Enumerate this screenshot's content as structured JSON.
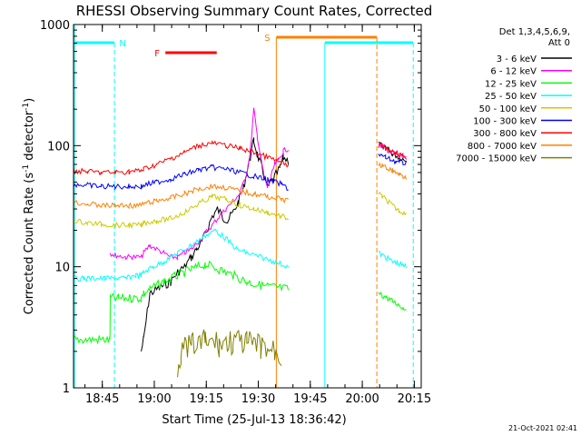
{
  "chart_data": {
    "type": "line",
    "title": "RHESSI Observing Summary Count Rates, Corrected",
    "xlabel": "Start Time (25-Jul-13 18:36:42)",
    "ylabel": "Corrected Count Rate (s⁻¹ detector⁻¹)",
    "ylabel_main": "Corrected Count Rate (s",
    "ylabel_exp1": "-1",
    "ylabel_mid": " detector",
    "ylabel_exp2": "-1",
    "ylabel_end": ")",
    "x_scale": "time",
    "y_scale": "log",
    "xlim": [
      "18:36:42",
      "20:17:00"
    ],
    "ylim": [
      1,
      1000
    ],
    "x_ticks": [
      "18:45",
      "19:00",
      "19:15",
      "19:30",
      "19:45",
      "20:00",
      "20:15"
    ],
    "x_tick_minutes": [
      8.3,
      23.3,
      38.3,
      53.3,
      68.3,
      83.3,
      98.3
    ],
    "y_ticks": [
      "1",
      "10",
      "100",
      "1000"
    ],
    "y_tick_values": [
      1,
      10,
      100,
      1000
    ],
    "legend_header": [
      "Det 1,3,4,5,6,9,",
      "Att 0"
    ],
    "legend_placement": "right",
    "series": [
      {
        "name": "3 - 6 keV",
        "color": "#000000",
        "x": [
          19.5,
          20.2,
          22,
          26,
          28,
          30,
          32,
          34,
          35.5,
          37,
          38.5,
          40,
          41.5,
          43,
          44.5,
          46,
          47.5,
          49,
          50,
          51,
          52,
          53,
          54,
          55,
          56,
          57,
          58,
          59.5,
          60.5,
          62
        ],
        "y": [
          2,
          2.5,
          6,
          7,
          7.5,
          9,
          10,
          12,
          14,
          16,
          20,
          26,
          30,
          26,
          24,
          28,
          34,
          45,
          60,
          80,
          110,
          85,
          70,
          55,
          45,
          50,
          55,
          65,
          80,
          75
        ]
      },
      {
        "name": "6 - 12 keV",
        "color": "#ff00ff",
        "x": [
          10.5,
          12,
          15,
          17,
          19.5,
          20.2,
          22,
          26,
          28,
          30,
          32,
          34,
          36,
          38,
          40,
          42,
          44,
          46,
          48,
          50,
          51,
          52,
          53,
          54,
          55,
          56,
          57,
          58,
          59,
          60.5,
          62
        ],
        "y": [
          13,
          12.5,
          12,
          12,
          12,
          13,
          15,
          13,
          12,
          12,
          13,
          14,
          16,
          19,
          22,
          26,
          30,
          35,
          40,
          60,
          90,
          200,
          120,
          80,
          55,
          45,
          55,
          70,
          75,
          90,
          95
        ]
      },
      {
        "name": "12 - 25 keV",
        "color": "#00ff00",
        "x": [
          0,
          10.5,
          10.6,
          13,
          17,
          19.5,
          20.2,
          22,
          26,
          30,
          34,
          38,
          42,
          46,
          50,
          54,
          58,
          62
        ],
        "y": [
          2.5,
          2.5,
          5.5,
          5.5,
          5.5,
          5.5,
          6,
          6.5,
          7.5,
          8.5,
          9.5,
          10.5,
          9.5,
          8.5,
          7.5,
          7,
          6.8,
          6.5
        ]
      },
      {
        "name": "25 - 50 keV",
        "color": "#00ffff",
        "x": [
          0,
          3,
          6,
          9,
          12,
          15,
          18,
          19.5,
          20.2,
          23,
          26,
          30,
          34,
          38,
          41,
          44,
          47,
          50,
          54,
          58,
          62
        ],
        "y": [
          8,
          8,
          8,
          8,
          8,
          8,
          8.5,
          8.5,
          9,
          10,
          11,
          13,
          15,
          18,
          20,
          17,
          14,
          13,
          12,
          11,
          10
        ]
      },
      {
        "name": "50 - 100 keV",
        "color": "#cccc00",
        "x": [
          0,
          4,
          8,
          12,
          16,
          19.5,
          20.2,
          24,
          28,
          32,
          36,
          40,
          44,
          48,
          52,
          56,
          60,
          62
        ],
        "y": [
          24,
          23,
          22.5,
          22,
          22,
          22,
          23,
          24,
          25,
          28,
          33,
          38,
          36,
          32,
          30,
          28,
          26,
          25
        ]
      },
      {
        "name": "100 - 300 keV",
        "color": "#0000ff",
        "x": [
          0,
          4,
          8,
          12,
          16,
          19.5,
          20.2,
          24,
          28,
          32,
          36,
          40,
          44,
          48,
          52,
          56,
          60,
          62
        ],
        "y": [
          48,
          47,
          46,
          46,
          46,
          46,
          47,
          50,
          53,
          58,
          63,
          66,
          64,
          60,
          56,
          52,
          48,
          44
        ]
      },
      {
        "name": "300 - 800 keV",
        "color": "#ff0000",
        "x": [
          0,
          4,
          8,
          12,
          16,
          19.5,
          20.2,
          24,
          28,
          32,
          36,
          40,
          44,
          48,
          52,
          56,
          60,
          62
        ],
        "y": [
          62,
          61,
          60,
          60,
          61,
          62,
          64,
          70,
          78,
          88,
          100,
          105,
          100,
          95,
          88,
          80,
          72,
          68
        ]
      },
      {
        "name": "800 - 7000 keV",
        "color": "#ff8000",
        "x": [
          0,
          4,
          8,
          12,
          16,
          19.5,
          20.2,
          24,
          28,
          32,
          36,
          40,
          44,
          48,
          52,
          56,
          60,
          62
        ],
        "y": [
          34,
          33,
          32,
          32,
          32,
          32,
          33,
          35,
          37,
          40,
          44,
          46,
          45,
          42,
          40,
          38,
          36,
          35
        ]
      },
      {
        "name": "7000 - 15000 keV",
        "color": "#808000",
        "x": [
          30,
          31,
          34,
          38,
          42,
          46,
          50,
          54,
          58,
          60
        ],
        "y": [
          1.5,
          2,
          2.2,
          2.4,
          2.3,
          2.4,
          2.3,
          2.2,
          2.0,
          1.8
        ]
      }
    ],
    "after_gap_series": {
      "x": [
        88,
        89,
        90,
        91,
        92,
        93,
        94,
        95,
        96
      ],
      "3 - 6 keV": [
        110,
        100,
        95,
        90,
        85,
        82,
        80,
        78,
        76
      ],
      "6 - 12 keV": [
        105,
        100,
        95,
        90,
        88,
        85,
        82,
        80,
        78
      ],
      "300 - 800 keV": [
        100,
        98,
        95,
        92,
        90,
        88,
        85,
        82,
        80
      ],
      "100 - 300 keV": [
        85,
        82,
        80,
        78,
        76,
        74,
        73,
        72,
        72
      ],
      "800 - 7000 keV": [
        70,
        68,
        66,
        64,
        62,
        60,
        58,
        56,
        55
      ],
      "50 - 100 keV": [
        40,
        38,
        36,
        34,
        32,
        30,
        29,
        28,
        27
      ],
      "25 - 50 keV": [
        13,
        12.5,
        12,
        11.5,
        11,
        10.8,
        10.5,
        10.3,
        10
      ],
      "12 - 25 keV": [
        6,
        5.8,
        5.6,
        5.4,
        5.2,
        5,
        4.8,
        4.6,
        4.5
      ]
    },
    "annotations": [
      {
        "label": "N",
        "color": "#00ffff",
        "kind": "night",
        "x_start": 0,
        "x_end": 11.8
      },
      {
        "label": "N",
        "color": "#00ffff",
        "kind": "night",
        "x_start": 72.5,
        "x_end": 98
      },
      {
        "label": "S",
        "color": "#ff8000",
        "kind": "saa",
        "x_start": 58.5,
        "x_end": 87.5
      },
      {
        "label": "F",
        "color": "#ff0000",
        "kind": "flare",
        "x_start": 26.5,
        "x_end": 41.3
      }
    ],
    "footer_date": "21-Oct-2021 02:41",
    "plot_range_minutes": [
      0,
      100.3
    ]
  }
}
